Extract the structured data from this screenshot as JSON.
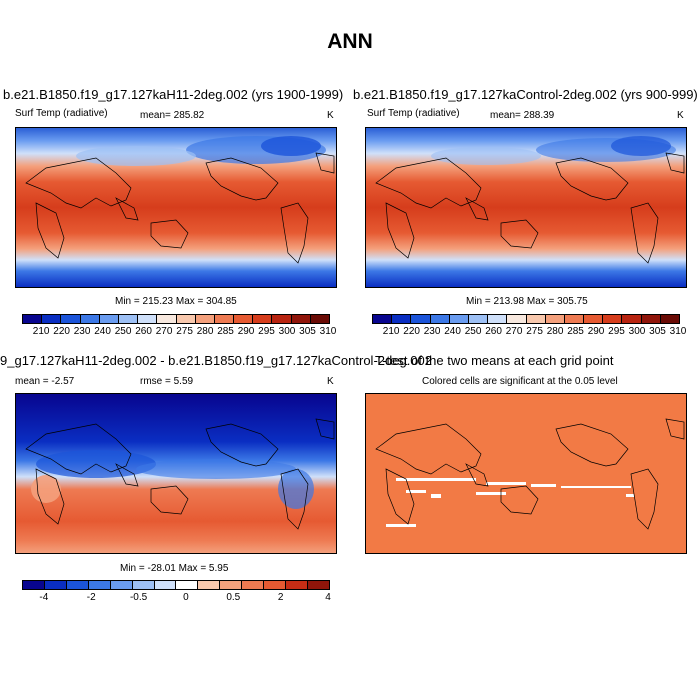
{
  "title": "ANN",
  "panels": {
    "p1": {
      "title": "b.e21.B1850.f19_g17.127kaH11-2deg.002 (yrs 1900-1999)",
      "left": "Surf Temp (radiative)",
      "stat": "mean= 285.82",
      "unit": "K",
      "minmax": "Min = 215.23 Max = 304.85"
    },
    "p2": {
      "title": "b.e21.B1850.f19_g17.127kaControl-2deg.002 (yrs 900-999)",
      "left": "Surf Temp (radiative)",
      "stat": "mean= 288.39",
      "unit": "K",
      "minmax": "Min = 213.98 Max = 305.75"
    },
    "p3": {
      "title": "9_g17.127kaH11-2deg.002 - b.e21.B1850.f19_g17.127kaControl-2deg.002",
      "left": "mean =  -2.57",
      "stat": "rmse =   5.59",
      "unit": "K",
      "minmax": "Min = -28.01 Max =  5.95"
    },
    "p4": {
      "title": "T-test of the two means at each grid point",
      "subtitle": "Colored cells are significant at the 0.05 level"
    }
  },
  "colorbars": {
    "abs": {
      "colors": [
        "#08058f",
        "#0a2ec2",
        "#1b54d9",
        "#3c78e6",
        "#6a9cf0",
        "#9dc0f5",
        "#cfe0fa",
        "#f7e8de",
        "#f8c8ad",
        "#f4a07c",
        "#ee7a52",
        "#e65a32",
        "#d63d1c",
        "#b82410",
        "#90150a",
        "#6a0b05"
      ],
      "labels": [
        "210",
        "220",
        "230",
        "240",
        "250",
        "260",
        "270",
        "275",
        "280",
        "285",
        "290",
        "295",
        "300",
        "305",
        "310"
      ]
    },
    "diff": {
      "colors": [
        "#08058f",
        "#0a2ec2",
        "#1b54d9",
        "#3c78e6",
        "#6a9cf0",
        "#9dc0f5",
        "#cfe0fa",
        "#ffffff",
        "#f8c8ad",
        "#f4a07c",
        "#ee7a52",
        "#e65a32",
        "#c62d15",
        "#90150a"
      ],
      "labels": [
        "-4",
        "-2",
        "-0.5",
        "0",
        "0.5",
        "2",
        "4"
      ]
    }
  },
  "ttest_color": "#f27a45"
}
